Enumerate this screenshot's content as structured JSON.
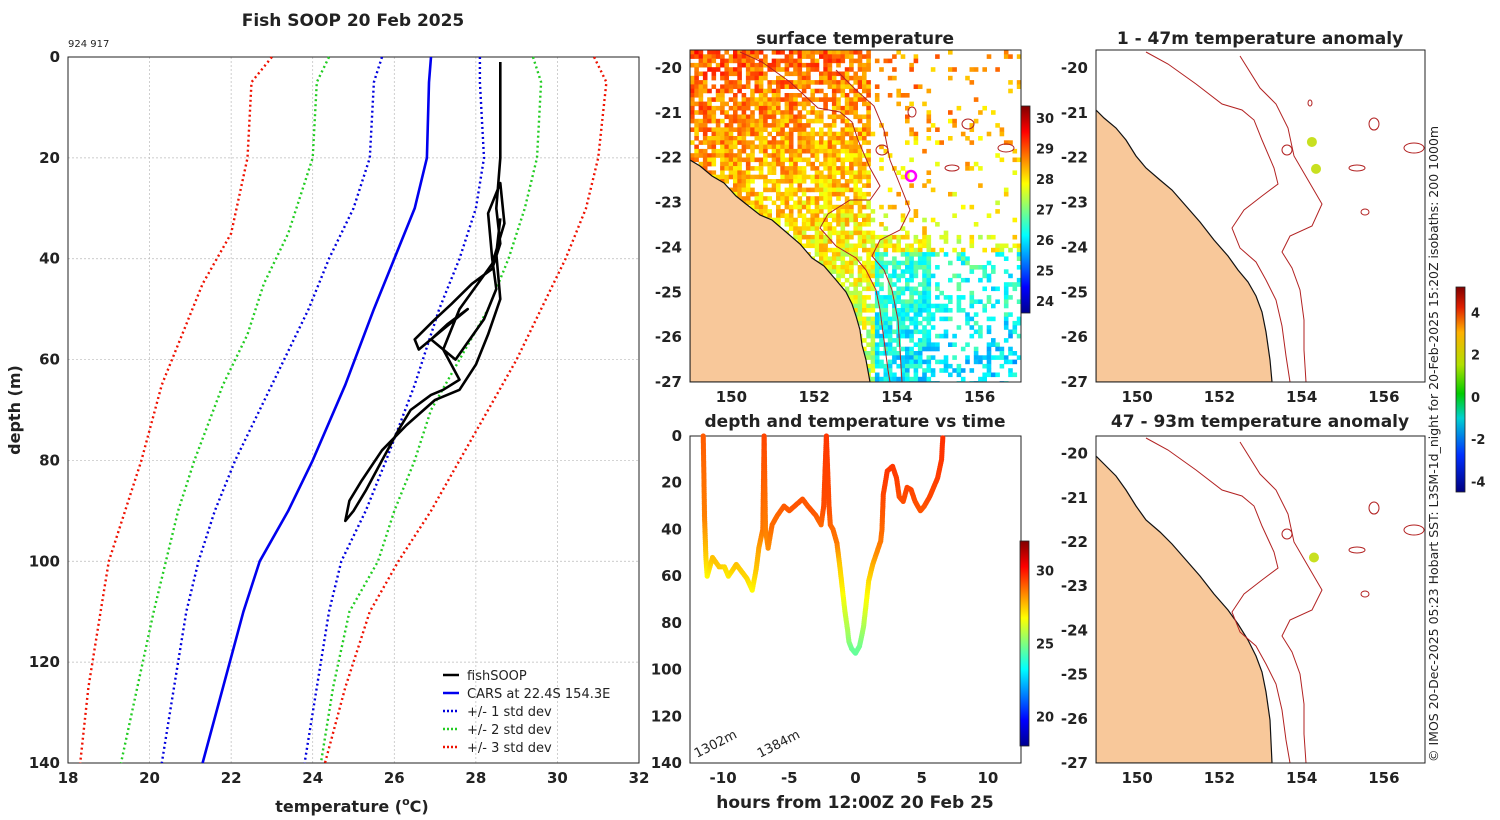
{
  "footer_text": "© IMOS 20-Dec-2025 05:23 Hobart SST: L3SM-1d_night for 20-Feb-2025 15:20Z isobaths: 200  1000m",
  "colors": {
    "fish": "#000000",
    "cars": "#0000ee",
    "std1": "#0000dd",
    "std2": "#22cc22",
    "std3": "#ee1100",
    "land": "#f8c89a",
    "coast": "#111111",
    "isobath": "#b22222",
    "marker": "#ff00ff"
  },
  "chart_data": [
    {
      "id": "profile",
      "type": "line",
      "title": "Fish SOOP 20 Feb 2025",
      "subtitle": "924 917",
      "xlabel": "temperature (",
      "xlabel_unit": "o",
      "xlabel_end": "C)",
      "ylabel": "depth (m)",
      "xlim": [
        18,
        32
      ],
      "ylim": [
        0,
        140
      ],
      "xticks": [
        "18",
        "20",
        "22",
        "24",
        "26",
        "28",
        "30",
        "32"
      ],
      "yticks": [
        "0",
        "20",
        "40",
        "60",
        "80",
        "100",
        "120",
        "140"
      ],
      "legend": [
        "fishSOOP",
        "CARS at 22.4S 154.3E",
        "+/- 1 std dev",
        "+/- 2 std dev",
        "+/- 3 std dev"
      ],
      "series": [
        {
          "name": "CARS at 22.4S 154.3E",
          "points": [
            [
              26.9,
              0
            ],
            [
              26.85,
              5
            ],
            [
              26.8,
              20
            ],
            [
              26.5,
              30
            ],
            [
              26.0,
              40
            ],
            [
              25.5,
              50
            ],
            [
              24.8,
              65
            ],
            [
              24.0,
              80
            ],
            [
              23.4,
              90
            ],
            [
              22.7,
              100
            ],
            [
              22.3,
              110
            ],
            [
              21.8,
              125
            ],
            [
              21.3,
              140
            ]
          ]
        },
        {
          "name": "+/- 1 std dev (low)",
          "points": [
            [
              25.7,
              0
            ],
            [
              25.5,
              5
            ],
            [
              25.4,
              20
            ],
            [
              25.0,
              30
            ],
            [
              24.4,
              40
            ],
            [
              23.9,
              50
            ],
            [
              23.0,
              65
            ],
            [
              22.1,
              80
            ],
            [
              21.6,
              90
            ],
            [
              21.2,
              100
            ],
            [
              20.9,
              110
            ],
            [
              20.6,
              125
            ],
            [
              20.3,
              140
            ]
          ]
        },
        {
          "name": "+/- 1 std dev (high)",
          "points": [
            [
              28.1,
              0
            ],
            [
              28.1,
              5
            ],
            [
              28.2,
              20
            ],
            [
              28.0,
              30
            ],
            [
              27.6,
              40
            ],
            [
              27.1,
              50
            ],
            [
              26.5,
              65
            ],
            [
              25.8,
              80
            ],
            [
              25.3,
              90
            ],
            [
              24.7,
              100
            ],
            [
              24.4,
              110
            ],
            [
              24.1,
              125
            ],
            [
              23.8,
              140
            ]
          ]
        },
        {
          "name": "+/- 2 std dev (low)",
          "points": [
            [
              24.4,
              0
            ],
            [
              24.1,
              5
            ],
            [
              24.0,
              20
            ],
            [
              23.4,
              35
            ],
            [
              22.8,
              45
            ],
            [
              22.4,
              55
            ],
            [
              21.8,
              65
            ],
            [
              21.1,
              80
            ],
            [
              20.7,
              90
            ],
            [
              20.4,
              100
            ],
            [
              20.1,
              110
            ],
            [
              19.7,
              125
            ],
            [
              19.3,
              140
            ]
          ]
        },
        {
          "name": "+/- 2 std dev (high)",
          "points": [
            [
              29.4,
              0
            ],
            [
              29.6,
              5
            ],
            [
              29.5,
              20
            ],
            [
              29.2,
              30
            ],
            [
              28.8,
              40
            ],
            [
              28.3,
              50
            ],
            [
              27.6,
              60
            ],
            [
              26.9,
              70
            ],
            [
              26.5,
              80
            ],
            [
              26.0,
              90
            ],
            [
              25.6,
              100
            ],
            [
              24.9,
              110
            ],
            [
              24.5,
              125
            ],
            [
              24.2,
              140
            ]
          ]
        },
        {
          "name": "+/- 3 std dev (low)",
          "points": [
            [
              23.0,
              0
            ],
            [
              22.5,
              5
            ],
            [
              22.4,
              20
            ],
            [
              22.0,
              35
            ],
            [
              21.3,
              45
            ],
            [
              20.8,
              55
            ],
            [
              20.3,
              65
            ],
            [
              19.8,
              80
            ],
            [
              19.4,
              90
            ],
            [
              19.0,
              100
            ],
            [
              18.8,
              110
            ],
            [
              18.5,
              125
            ],
            [
              18.3,
              140
            ]
          ]
        },
        {
          "name": "+/- 3 std dev (high)",
          "points": [
            [
              30.9,
              0
            ],
            [
              31.2,
              5
            ],
            [
              31.0,
              20
            ],
            [
              30.7,
              30
            ],
            [
              30.2,
              40
            ],
            [
              29.6,
              50
            ],
            [
              29.0,
              60
            ],
            [
              28.3,
              70
            ],
            [
              27.6,
              80
            ],
            [
              26.9,
              90
            ],
            [
              26.1,
              100
            ],
            [
              25.4,
              110
            ],
            [
              24.8,
              125
            ],
            [
              24.3,
              140
            ]
          ]
        },
        {
          "name": "fishSOOP",
          "points": [
            [
              28.6,
              1
            ],
            [
              28.6,
              20
            ],
            [
              28.5,
              30
            ],
            [
              28.6,
              37
            ],
            [
              28.4,
              42
            ],
            [
              27.9,
              45
            ],
            [
              27.4,
              49
            ],
            [
              27.0,
              52
            ],
            [
              26.5,
              56
            ],
            [
              26.6,
              58
            ],
            [
              27.2,
              54
            ],
            [
              27.8,
              50
            ],
            [
              27.3,
              53
            ],
            [
              26.9,
              56
            ],
            [
              27.5,
              60
            ],
            [
              28.2,
              52
            ],
            [
              28.5,
              46
            ],
            [
              28.4,
              40
            ],
            [
              28.3,
              31
            ],
            [
              28.6,
              25
            ],
            [
              28.7,
              33
            ],
            [
              28.4,
              41
            ],
            [
              27.6,
              50
            ],
            [
              27.2,
              58
            ],
            [
              27.6,
              64
            ],
            [
              27.2,
              66
            ],
            [
              26.9,
              67
            ],
            [
              26.4,
              70
            ],
            [
              26.1,
              74
            ],
            [
              25.7,
              80
            ],
            [
              25.3,
              86
            ],
            [
              25.0,
              90
            ],
            [
              24.8,
              92
            ],
            [
              24.9,
              88
            ],
            [
              25.2,
              84
            ],
            [
              25.7,
              78
            ],
            [
              26.3,
              73
            ],
            [
              27.0,
              68
            ],
            [
              27.6,
              66
            ],
            [
              28.0,
              61
            ],
            [
              28.3,
              55
            ],
            [
              28.6,
              48
            ],
            [
              28.5,
              39
            ],
            [
              28.6,
              32
            ]
          ]
        }
      ]
    },
    {
      "id": "timeseries",
      "type": "scatter",
      "title": "depth and temperature vs time",
      "xlabel": "hours from 12:00Z 20 Feb 25",
      "xlim": [
        -12.5,
        12.5
      ],
      "ylim": [
        0,
        140
      ],
      "xticks": [
        "-10",
        "-5",
        "0",
        "5",
        "10"
      ],
      "yticks": [
        "0",
        "20",
        "40",
        "60",
        "80",
        "100",
        "120",
        "140"
      ],
      "annotations": [
        "1302m",
        "1384m"
      ],
      "colorbar": {
        "range": [
          18,
          32
        ],
        "ticks": [
          "20",
          "25",
          "30"
        ]
      },
      "series": [
        {
          "name": "dive",
          "points": [
            [
              -11.5,
              0,
              29.0
            ],
            [
              -11.4,
              35,
              28.5
            ],
            [
              -11.3,
              52,
              27.4
            ],
            [
              -11.2,
              60,
              26.8
            ],
            [
              -10.8,
              52,
              27.6
            ],
            [
              -10.3,
              56,
              27.5
            ],
            [
              -9.9,
              56,
              27.3
            ],
            [
              -9.6,
              60,
              27.0
            ],
            [
              -9.0,
              55,
              27.6
            ],
            [
              -8.6,
              58,
              27.4
            ],
            [
              -8.2,
              61,
              27.3
            ],
            [
              -7.8,
              66,
              26.8
            ],
            [
              -7.5,
              57,
              27.5
            ],
            [
              -7.3,
              48,
              28.0
            ],
            [
              -7.0,
              40,
              28.6
            ],
            [
              -6.9,
              0,
              29.3
            ],
            [
              -6.8,
              40,
              28.5
            ],
            [
              -6.6,
              48,
              28.3
            ],
            [
              -6.3,
              38,
              28.8
            ],
            [
              -5.9,
              34,
              28.8
            ],
            [
              -5.4,
              30,
              29.0
            ],
            [
              -5.0,
              32,
              29.0
            ],
            [
              -4.6,
              30,
              29.1
            ],
            [
              -4.0,
              27,
              29.1
            ],
            [
              -3.6,
              30,
              29.0
            ],
            [
              -3.3,
              32,
              29.1
            ],
            [
              -3.0,
              34,
              29.0
            ],
            [
              -2.6,
              38,
              28.8
            ],
            [
              -2.4,
              30,
              29.2
            ],
            [
              -2.2,
              0,
              29.5
            ],
            [
              -2.0,
              30,
              29.2
            ],
            [
              -1.9,
              38,
              28.9
            ],
            [
              -1.7,
              40,
              28.8
            ],
            [
              -1.4,
              46,
              28.6
            ],
            [
              -1.2,
              55,
              27.5
            ],
            [
              -1.0,
              65,
              27.0
            ],
            [
              -0.8,
              75,
              26.2
            ],
            [
              -0.6,
              83,
              25.6
            ],
            [
              -0.5,
              88,
              25.2
            ],
            [
              -0.3,
              91,
              24.8
            ],
            [
              0.0,
              93,
              24.6
            ],
            [
              0.3,
              90,
              24.8
            ],
            [
              0.6,
              82,
              25.5
            ],
            [
              0.8,
              72,
              26.5
            ],
            [
              1.0,
              62,
              27.2
            ],
            [
              1.3,
              55,
              27.8
            ],
            [
              1.6,
              50,
              28.3
            ],
            [
              1.9,
              45,
              28.6
            ],
            [
              2.0,
              40,
              28.8
            ],
            [
              2.1,
              25,
              29.3
            ],
            [
              2.4,
              15,
              29.5
            ],
            [
              2.8,
              13,
              29.5
            ],
            [
              3.1,
              18,
              29.4
            ],
            [
              3.3,
              26,
              29.2
            ],
            [
              3.6,
              28,
              29.2
            ],
            [
              3.9,
              22,
              29.3
            ],
            [
              4.2,
              23,
              29.3
            ],
            [
              4.5,
              28,
              29.2
            ],
            [
              4.9,
              32,
              29.1
            ],
            [
              5.2,
              30,
              29.1
            ],
            [
              5.6,
              26,
              29.3
            ],
            [
              5.9,
              22,
              29.3
            ],
            [
              6.2,
              18,
              29.4
            ],
            [
              6.5,
              10,
              29.5
            ],
            [
              6.6,
              0,
              29.6
            ]
          ]
        }
      ]
    },
    {
      "id": "sst_map",
      "type": "heatmap",
      "title": "surface temperature",
      "xlim": [
        149,
        157
      ],
      "ylim": [
        -27,
        -19.6
      ],
      "xticks": [
        "150",
        "152",
        "154",
        "156"
      ],
      "yticks": [
        "-20",
        "-21",
        "-22",
        "-23",
        "-24",
        "-25",
        "-26",
        "-27"
      ],
      "colorbar": {
        "range": [
          23.6,
          30.4
        ],
        "ticks": [
          "30",
          "29",
          "28",
          "27",
          "26",
          "25",
          "24"
        ]
      },
      "marker": {
        "lon": 154.3,
        "lat": -22.4
      }
    },
    {
      "id": "anom_upper",
      "type": "heatmap",
      "title": "1 - 47m temperature anomaly",
      "xlim": [
        149,
        157
      ],
      "ylim": [
        -27,
        -19.6
      ],
      "xticks": [
        "150",
        "152",
        "154",
        "156"
      ],
      "yticks": [
        "-20",
        "-21",
        "-22",
        "-23",
        "-24",
        "-25",
        "-26",
        "-27"
      ],
      "dots": [
        {
          "lon": 154.25,
          "lat": -21.65,
          "anomaly": 1.6
        },
        {
          "lon": 154.35,
          "lat": -22.25,
          "anomaly": 1.8
        }
      ]
    },
    {
      "id": "anom_lower",
      "type": "heatmap",
      "title": "47 - 93m temperature anomaly",
      "xlim": [
        149,
        157
      ],
      "ylim": [
        -27,
        -19.6
      ],
      "xticks": [
        "150",
        "152",
        "154",
        "156"
      ],
      "yticks": [
        "-20",
        "-21",
        "-22",
        "-23",
        "-24",
        "-25",
        "-26",
        "-27"
      ],
      "dots": [
        {
          "lon": 154.3,
          "lat": -22.35,
          "anomaly": 1.7
        }
      ],
      "colorbar": {
        "range": [
          -4.5,
          5.2
        ],
        "ticks": [
          "4",
          "2",
          "0",
          "-2",
          "-4"
        ]
      }
    }
  ]
}
